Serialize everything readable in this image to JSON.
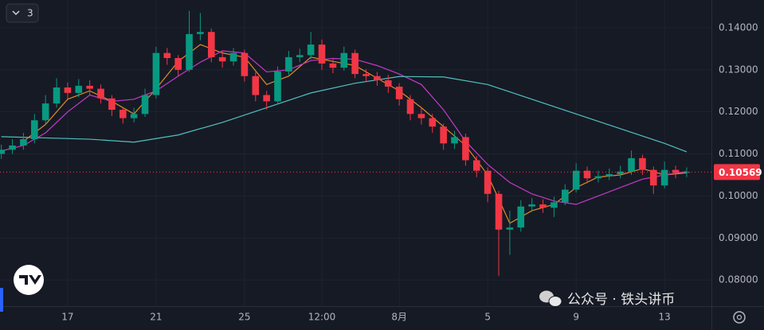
{
  "chart_data": {
    "type": "candlestick",
    "indicator_count": 3,
    "watermark": "公众号 · 铁头讲币",
    "up_color": "#089981",
    "down_color": "#f23645",
    "grid": true,
    "xlim": [
      -3.06,
      29.12
    ],
    "xticks": [
      {
        "value": 0,
        "label": "17"
      },
      {
        "value": 4,
        "label": "21"
      },
      {
        "value": 8,
        "label": "25"
      },
      {
        "value": 11.5,
        "label": "12:00"
      },
      {
        "value": 15,
        "label": "8月"
      },
      {
        "value": 19,
        "label": "5"
      },
      {
        "value": 23,
        "label": "9"
      },
      {
        "value": 27,
        "label": "13"
      }
    ],
    "ylim": [
      0.0738,
      0.1466
    ],
    "yticks": [
      {
        "value": 0.08,
        "label": "0.08000"
      },
      {
        "value": 0.09,
        "label": "0.09000"
      },
      {
        "value": 0.1,
        "label": "0.10000"
      },
      {
        "value": 0.11,
        "label": "0.11000"
      },
      {
        "value": 0.12,
        "label": "0.12000"
      },
      {
        "value": 0.13,
        "label": "0.13000"
      },
      {
        "value": 0.14,
        "label": "0.14000"
      }
    ],
    "last_price": 0.10569,
    "candles": {
      "x": [
        -3,
        -2.5,
        -2,
        -1.5,
        -1,
        -0.5,
        0,
        0.5,
        1,
        1.5,
        2,
        2.5,
        3,
        3.5,
        4,
        4.5,
        5,
        5.5,
        6,
        6.5,
        7,
        7.5,
        8,
        8.5,
        9,
        9.5,
        10,
        10.5,
        11,
        11.5,
        12,
        12.5,
        13,
        13.5,
        14,
        14.5,
        15,
        15.5,
        16,
        16.5,
        17,
        17.5,
        18,
        18.5,
        19,
        19.5,
        20,
        20.5,
        21,
        21.5,
        22,
        22.5,
        23,
        23.5,
        24,
        24.5,
        25,
        25.5,
        26,
        26.5,
        27,
        27.5,
        28
      ],
      "open": [
        0.11,
        0.111,
        0.112,
        0.1135,
        0.118,
        0.122,
        0.1258,
        0.1245,
        0.1262,
        0.1255,
        0.1232,
        0.1205,
        0.1185,
        0.1195,
        0.124,
        0.134,
        0.1328,
        0.13,
        0.1385,
        0.139,
        0.133,
        0.132,
        0.134,
        0.1285,
        0.124,
        0.1225,
        0.1296,
        0.133,
        0.1335,
        0.136,
        0.1315,
        0.1305,
        0.134,
        0.129,
        0.1285,
        0.1275,
        0.126,
        0.123,
        0.1195,
        0.1185,
        0.1165,
        0.1125,
        0.114,
        0.1085,
        0.106,
        0.1005,
        0.092,
        0.0925,
        0.0975,
        0.098,
        0.0972,
        0.0985,
        0.1015,
        0.106,
        0.1042,
        0.1047,
        0.1052,
        0.1058,
        0.109,
        0.1062,
        0.1025,
        0.1062,
        0.1055
      ],
      "high": [
        0.1122,
        0.1135,
        0.115,
        0.1195,
        0.124,
        0.128,
        0.127,
        0.1278,
        0.1275,
        0.1265,
        0.124,
        0.1212,
        0.121,
        0.1255,
        0.1355,
        0.1352,
        0.1335,
        0.144,
        0.1435,
        0.1398,
        0.1345,
        0.1352,
        0.1348,
        0.1295,
        0.125,
        0.1308,
        0.1345,
        0.135,
        0.139,
        0.1372,
        0.1325,
        0.1355,
        0.1348,
        0.1302,
        0.1295,
        0.1288,
        0.1268,
        0.124,
        0.121,
        0.1195,
        0.1172,
        0.1155,
        0.1148,
        0.1095,
        0.1068,
        0.1012,
        0.0965,
        0.099,
        0.0995,
        0.0992,
        0.0998,
        0.1028,
        0.1078,
        0.107,
        0.106,
        0.1065,
        0.1072,
        0.1108,
        0.1098,
        0.107,
        0.1082,
        0.1072,
        0.1068
      ],
      "low": [
        0.1088,
        0.11,
        0.111,
        0.1125,
        0.117,
        0.121,
        0.1232,
        0.1235,
        0.124,
        0.122,
        0.119,
        0.1172,
        0.1175,
        0.1188,
        0.1232,
        0.1312,
        0.1285,
        0.1295,
        0.137,
        0.1318,
        0.1305,
        0.131,
        0.1272,
        0.1225,
        0.1205,
        0.1218,
        0.1288,
        0.1318,
        0.1325,
        0.13,
        0.1292,
        0.1298,
        0.128,
        0.1272,
        0.1262,
        0.1245,
        0.1215,
        0.118,
        0.117,
        0.115,
        0.111,
        0.1112,
        0.1072,
        0.1045,
        0.0985,
        0.081,
        0.086,
        0.0915,
        0.0962,
        0.096,
        0.095,
        0.0978,
        0.1008,
        0.103,
        0.1032,
        0.1038,
        0.1042,
        0.105,
        0.105,
        0.1005,
        0.1018,
        0.1042,
        0.1045
      ],
      "close": [
        0.111,
        0.112,
        0.1135,
        0.118,
        0.122,
        0.1258,
        0.1245,
        0.1262,
        0.1255,
        0.1232,
        0.1205,
        0.1185,
        0.1195,
        0.124,
        0.134,
        0.1328,
        0.13,
        0.1385,
        0.139,
        0.133,
        0.132,
        0.134,
        0.1285,
        0.124,
        0.1225,
        0.1296,
        0.133,
        0.1335,
        0.136,
        0.1315,
        0.1305,
        0.134,
        0.129,
        0.1285,
        0.1275,
        0.126,
        0.123,
        0.1195,
        0.1185,
        0.1165,
        0.1125,
        0.114,
        0.1085,
        0.106,
        0.1005,
        0.092,
        0.0925,
        0.0975,
        0.098,
        0.0972,
        0.0985,
        0.1015,
        0.106,
        0.1042,
        0.1047,
        0.1052,
        0.1058,
        0.109,
        0.1062,
        0.1025,
        0.1062,
        0.1055,
        0.10569
      ]
    },
    "lines": [
      {
        "color": "#e08a2a",
        "x": [
          -2,
          -1,
          0,
          1,
          2,
          3,
          4,
          5,
          6,
          7,
          8,
          9,
          10,
          11,
          12,
          13,
          14,
          15,
          16,
          17,
          18,
          19,
          20,
          21,
          22,
          23,
          24,
          25,
          26,
          27,
          28
        ],
        "values": [
          0.113,
          0.117,
          0.123,
          0.125,
          0.1225,
          0.1195,
          0.1255,
          0.132,
          0.136,
          0.134,
          0.133,
          0.1265,
          0.1285,
          0.133,
          0.132,
          0.131,
          0.128,
          0.125,
          0.121,
          0.1165,
          0.112,
          0.105,
          0.0935,
          0.0965,
          0.098,
          0.102,
          0.1045,
          0.105,
          0.1065,
          0.105,
          0.1055
        ]
      },
      {
        "color": "#c23bc4",
        "x": [
          -3,
          -2,
          -1,
          0,
          1,
          2,
          3,
          4,
          5,
          6,
          7,
          8,
          9,
          10,
          11,
          12,
          13,
          14,
          15,
          16,
          17,
          18,
          19,
          20,
          21,
          22,
          23,
          24,
          25,
          26,
          27,
          28
        ],
        "values": [
          0.1107,
          0.112,
          0.115,
          0.12,
          0.124,
          0.1225,
          0.123,
          0.125,
          0.1285,
          0.1318,
          0.1345,
          0.134,
          0.1295,
          0.13,
          0.1322,
          0.1327,
          0.1325,
          0.131,
          0.129,
          0.1265,
          0.1205,
          0.113,
          0.1075,
          0.1032,
          0.1005,
          0.0988,
          0.098,
          0.1,
          0.102,
          0.104,
          0.105,
          0.1058
        ]
      },
      {
        "color": "#4fc1c1",
        "x": [
          -3,
          -1,
          1,
          3,
          5,
          7,
          9,
          11,
          13,
          15,
          17,
          19,
          21,
          23,
          25,
          27,
          28
        ],
        "values": [
          0.1141,
          0.1138,
          0.1135,
          0.1128,
          0.1145,
          0.1175,
          0.121,
          0.1245,
          0.1268,
          0.1284,
          0.1283,
          0.1265,
          0.123,
          0.1195,
          0.116,
          0.1125,
          0.1105
        ]
      }
    ]
  }
}
